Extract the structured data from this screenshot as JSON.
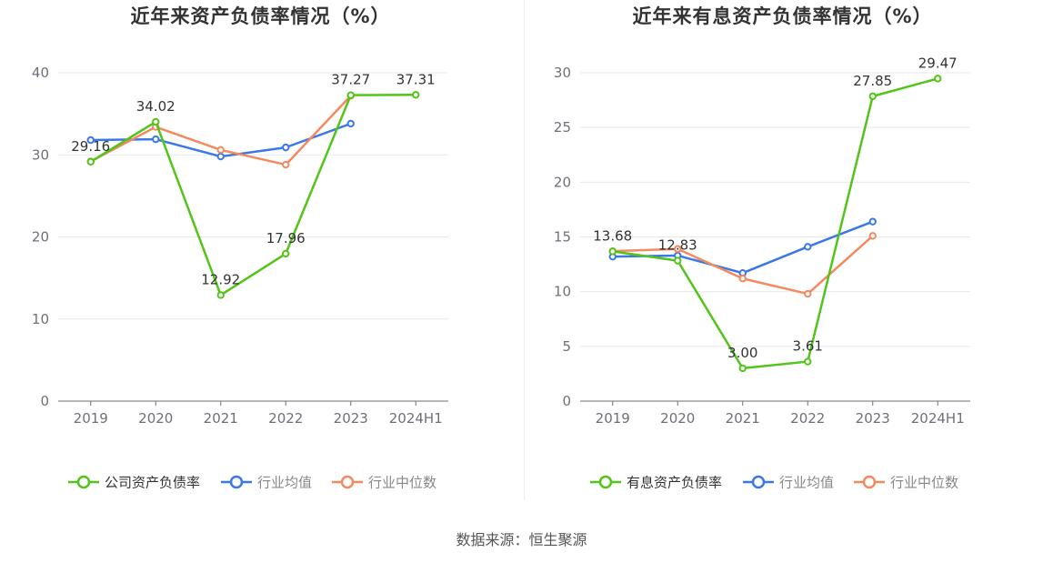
{
  "chart_data": [
    {
      "type": "line",
      "title": "近年来资产负债率情况（%）",
      "categories": [
        "2019",
        "2020",
        "2021",
        "2022",
        "2023",
        "2024H1"
      ],
      "ylim": [
        0,
        40
      ],
      "yticks": [
        "0",
        "10",
        "20",
        "30",
        "40"
      ],
      "grid": true,
      "legend_position": "bottom",
      "series": [
        {
          "name": "公司资产负债率",
          "color": "#52c41a",
          "values": [
            29.16,
            34.02,
            12.92,
            17.96,
            37.27,
            37.31
          ],
          "labels": [
            "29.16",
            "34.02",
            "12.92",
            "17.96",
            "37.27",
            "37.31"
          ]
        },
        {
          "name": "行业均值",
          "color": "#3b78e7",
          "values": [
            31.8,
            31.9,
            29.8,
            30.9,
            33.8,
            null
          ]
        },
        {
          "name": "行业中位数",
          "color": "#f4895f",
          "values": [
            29.2,
            33.4,
            30.6,
            28.8,
            37.2,
            null
          ]
        }
      ]
    },
    {
      "type": "line",
      "title": "近年来有息资产负债率情况（%）",
      "categories": [
        "2019",
        "2020",
        "2021",
        "2022",
        "2023",
        "2024H1"
      ],
      "ylim": [
        0,
        30
      ],
      "yticks": [
        "0",
        "5",
        "10",
        "15",
        "20",
        "25",
        "30"
      ],
      "grid": true,
      "legend_position": "bottom",
      "series": [
        {
          "name": "有息资产负债率",
          "color": "#52c41a",
          "values": [
            13.68,
            12.83,
            3.0,
            3.61,
            27.85,
            29.47
          ],
          "labels": [
            "13.68",
            "12.83",
            "3.00",
            "3.61",
            "27.85",
            "29.47"
          ]
        },
        {
          "name": "行业均值",
          "color": "#3b78e7",
          "values": [
            13.2,
            13.3,
            11.7,
            14.1,
            16.4,
            null
          ]
        },
        {
          "name": "行业中位数",
          "color": "#f4895f",
          "values": [
            13.7,
            13.9,
            11.2,
            9.8,
            15.1,
            null
          ]
        }
      ]
    }
  ],
  "source": "数据来源：恒生聚源"
}
